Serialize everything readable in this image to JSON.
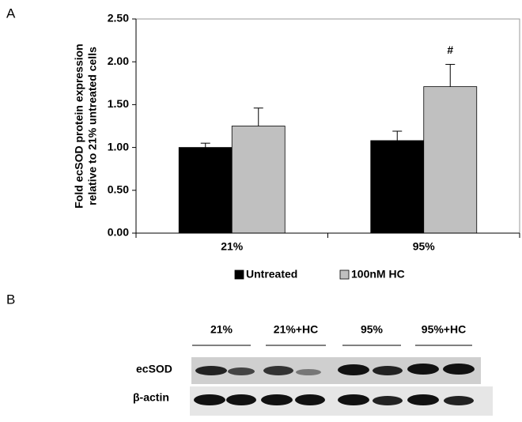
{
  "chart_data": {
    "type": "bar",
    "panel": "A",
    "ylabel_lines": [
      "Fold ecSOD protein expression",
      "relative to 21% untreated cells"
    ],
    "categories": [
      "21%",
      "95%"
    ],
    "series": [
      {
        "name": "Untreated",
        "color": "#000000",
        "values": [
          1.0,
          1.08
        ],
        "errors": [
          0.05,
          0.11
        ]
      },
      {
        "name": "100nM HC",
        "color": "#c0c0c0",
        "values": [
          1.25,
          1.71
        ],
        "errors": [
          0.21,
          0.26
        ]
      }
    ],
    "annotations": [
      {
        "text": "#"
      }
    ],
    "ylim": [
      0,
      2.5
    ],
    "yticks": [
      {
        "value": 0,
        "label": "0.00"
      },
      {
        "value": 0.5,
        "label": "0.50"
      },
      {
        "value": 1,
        "label": "1.00"
      },
      {
        "value": 1.5,
        "label": "1.50"
      },
      {
        "value": 2,
        "label": "2.00"
      },
      {
        "value": 2.5,
        "label": "2.50"
      }
    ],
    "legend": "bottom"
  },
  "blot": {
    "panel": "B",
    "lanes": [
      "21%",
      "21%+HC",
      "95%",
      "95%+HC"
    ],
    "rows": [
      "ecSOD",
      "β-actin"
    ]
  }
}
